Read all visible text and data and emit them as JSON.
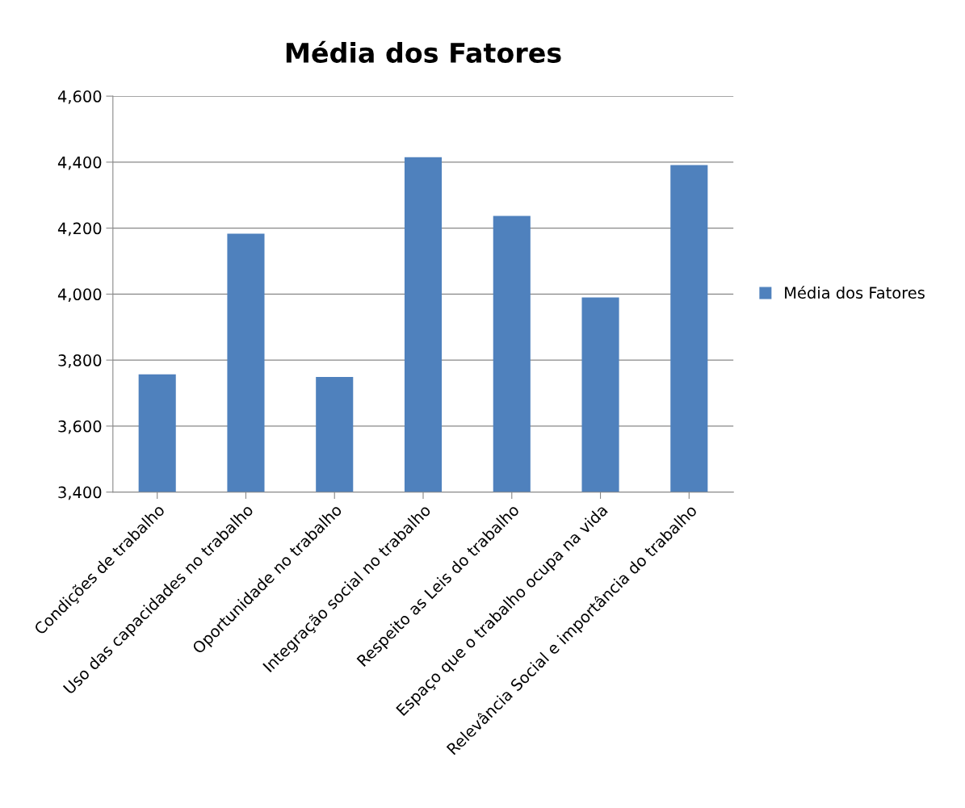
{
  "chart_data": {
    "type": "bar",
    "title": "Média dos Fatores",
    "categories": [
      "Condições de trabalho",
      "Uso das capacidades no trabalho",
      "Oportunidade no trabalho",
      "Integração social no trabalho",
      "Respeito as Leis do trabalho",
      "Espaço que o trabalho ocupa na vida",
      "Relevância Social e importância do trabalho"
    ],
    "series": [
      {
        "name": "Média dos Fatores",
        "color": "#4f81bd",
        "values": [
          3757,
          4183,
          3749,
          4415,
          4237,
          3990,
          4391
        ]
      }
    ],
    "ylim": [
      3400,
      4600
    ],
    "yticks": [
      {
        "value": 3400,
        "label": "3,400"
      },
      {
        "value": 3600,
        "label": "3,600"
      },
      {
        "value": 3800,
        "label": "3,800"
      },
      {
        "value": 4000,
        "label": "4,000"
      },
      {
        "value": 4200,
        "label": "4,200"
      },
      {
        "value": 4400,
        "label": "4,400"
      },
      {
        "value": 4600,
        "label": "4,600"
      }
    ],
    "grid": "y",
    "legend": "right"
  }
}
